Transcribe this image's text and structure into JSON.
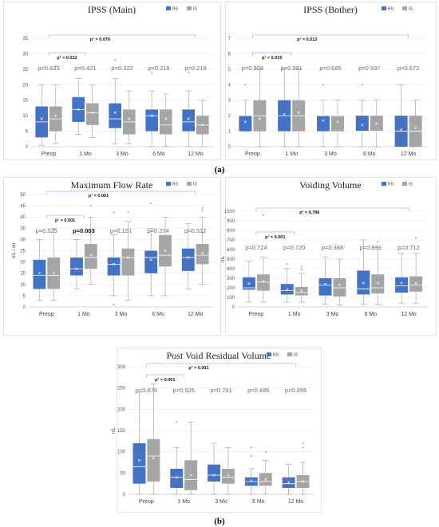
{
  "figure_labels": {
    "top": "(a)",
    "bottom": "(b)"
  },
  "chart_data": [
    {
      "type": "box",
      "title": "IPSS (Main)",
      "ylabel": "",
      "ylim": [
        0,
        35
      ],
      "yticks": [
        0,
        5,
        10,
        15,
        20,
        25,
        30,
        35
      ],
      "categories": [
        "Preop",
        "1 Mo",
        "3 Mo",
        "6 Mo",
        "12 Mo"
      ],
      "legend": {
        "position": "top-right",
        "entries": [
          "RS",
          "IS"
        ]
      },
      "colors": {
        "RS": "#4472c4",
        "IS": "#a5a5a5"
      },
      "p_values": [
        "p=0.633",
        "p=0.421",
        "p=0.322",
        "p=0.216",
        "p=0.218"
      ],
      "p_values_bold": [
        false,
        false,
        false,
        false,
        false
      ],
      "significance": [
        {
          "from": 0,
          "to": 1,
          "label": "p¹ = 0.012"
        },
        {
          "from": 0,
          "to": 4,
          "label": "p¹ = 0.076"
        }
      ],
      "series": [
        {
          "name": "RS",
          "boxes": [
            {
              "min": 0.5,
              "q1": 3,
              "median": 8,
              "q3": 13,
              "max": 20,
              "mean": 9,
              "outliers": []
            },
            {
              "min": 4,
              "q1": 8,
              "median": 12,
              "q3": 16,
              "max": 22,
              "mean": 12,
              "outliers": []
            },
            {
              "min": 1,
              "q1": 6,
              "median": 9,
              "q3": 14,
              "max": 22,
              "mean": 11,
              "outliers": [
                28
              ]
            },
            {
              "min": 0,
              "q1": 5,
              "median": 10,
              "q3": 12,
              "max": 18,
              "mean": 10,
              "outliers": [
                24
              ]
            },
            {
              "min": 0,
              "q1": 5,
              "median": 8,
              "q3": 12,
              "max": 18,
              "mean": 9,
              "outliers": [
                24
              ]
            }
          ]
        },
        {
          "name": "IS",
          "boxes": [
            {
              "min": 1,
              "q1": 5,
              "median": 9,
              "q3": 13,
              "max": 20,
              "mean": 10,
              "outliers": [
                26
              ]
            },
            {
              "min": 3,
              "q1": 7,
              "median": 11,
              "q3": 14,
              "max": 20,
              "mean": 11,
              "outliers": []
            },
            {
              "min": 1,
              "q1": 4,
              "median": 8,
              "q3": 12,
              "max": 18,
              "mean": 9,
              "outliers": []
            },
            {
              "min": 0,
              "q1": 4,
              "median": 7,
              "q3": 12,
              "max": 17,
              "mean": 9,
              "outliers": []
            },
            {
              "min": 0,
              "q1": 4,
              "median": 7,
              "q3": 10,
              "max": 15,
              "mean": 7,
              "outliers": []
            }
          ]
        }
      ]
    },
    {
      "type": "box",
      "title": "IPSS (Bother)",
      "ylabel": "",
      "ylim": [
        0,
        7
      ],
      "yticks": [
        0,
        1,
        2,
        3,
        4,
        5,
        6,
        7
      ],
      "categories": [
        "Preop",
        "1 Mo",
        "3 Mo",
        "6 Mo",
        "12 Mo"
      ],
      "legend": {
        "position": "top-right",
        "entries": [
          "RS",
          "IS"
        ]
      },
      "colors": {
        "RS": "#4472c4",
        "IS": "#a5a5a5"
      },
      "p_values": [
        "p=0.908",
        "p=0.981",
        "p=0.685",
        "p=0.937",
        "p=0.672"
      ],
      "p_values_bold": [
        false,
        false,
        false,
        false,
        false
      ],
      "significance": [
        {
          "from": 0,
          "to": 1,
          "label": "p¹ = 0.015"
        },
        {
          "from": 0,
          "to": 4,
          "label": "p¹ = 0.013"
        }
      ],
      "series": [
        {
          "name": "RS",
          "boxes": [
            {
              "min": 1,
              "q1": 1,
              "median": 2,
              "q3": 2,
              "max": 3,
              "mean": 1.6,
              "outliers": [
                4
              ]
            },
            {
              "min": 0,
              "q1": 1,
              "median": 2,
              "q3": 3,
              "max": 5,
              "mean": 2.1,
              "outliers": []
            },
            {
              "min": 0,
              "q1": 1,
              "median": 2,
              "q3": 2,
              "max": 3,
              "mean": 1.7,
              "outliers": [
                4
              ]
            },
            {
              "min": 0,
              "q1": 1,
              "median": 1,
              "q3": 2,
              "max": 3,
              "mean": 1.4,
              "outliers": [
                4
              ]
            },
            {
              "min": 0,
              "q1": 0,
              "median": 1,
              "q3": 2,
              "max": 4,
              "mean": 1.1,
              "outliers": []
            }
          ]
        },
        {
          "name": "IS",
          "boxes": [
            {
              "min": 0,
              "q1": 1,
              "median": 2,
              "q3": 3,
              "max": 5,
              "mean": 1.8,
              "outliers": []
            },
            {
              "min": 0,
              "q1": 1,
              "median": 2,
              "q3": 3,
              "max": 5,
              "mean": 2.2,
              "outliers": []
            },
            {
              "min": 0,
              "q1": 1,
              "median": 2,
              "q3": 2,
              "max": 3,
              "mean": 1.6,
              "outliers": []
            },
            {
              "min": 0,
              "q1": 1,
              "median": 1,
              "q3": 2,
              "max": 3,
              "mean": 1.5,
              "outliers": []
            },
            {
              "min": 0,
              "q1": 0,
              "median": 1,
              "q3": 2,
              "max": 3,
              "mean": 1.2,
              "outliers": []
            }
          ]
        }
      ]
    },
    {
      "type": "box",
      "title": "Maximum Flow Rate",
      "ylabel": "mL / sn",
      "ylim": [
        0,
        50
      ],
      "yticks": [
        0,
        5,
        10,
        15,
        20,
        25,
        30,
        35,
        40,
        45,
        50
      ],
      "categories": [
        "Preop",
        "1 Mo",
        "3 Mo",
        "6 Mo",
        "12 Mo"
      ],
      "legend": {
        "position": "top-right",
        "entries": [
          "RS",
          "IS"
        ]
      },
      "colors": {
        "RS": "#4472c4",
        "IS": "#a5a5a5"
      },
      "p_values": [
        "p=0.525",
        "p=0.003",
        "p=0.151",
        "p=0.274",
        "p=0.312"
      ],
      "p_values_bold": [
        false,
        true,
        false,
        false,
        false
      ],
      "significance": [
        {
          "from": 0,
          "to": 1,
          "label": "p¹ = 0.001"
        },
        {
          "from": 0,
          "to": 4,
          "label": "p¹ = 0.001"
        }
      ],
      "series": [
        {
          "name": "RS",
          "boxes": [
            {
              "min": 3,
              "q1": 8,
              "median": 14,
              "q3": 21,
              "max": 30,
              "mean": 15,
              "outliers": []
            },
            {
              "min": 8,
              "q1": 14,
              "median": 17,
              "q3": 22,
              "max": 30,
              "mean": 17,
              "outliers": []
            },
            {
              "min": 5,
              "q1": 14,
              "median": 19,
              "q3": 22,
              "max": 32,
              "mean": 19,
              "outliers": [
                1,
                42
              ]
            },
            {
              "min": 5,
              "q1": 15,
              "median": 22,
              "q3": 25,
              "max": 35,
              "mean": 21,
              "outliers": [
                46
              ]
            },
            {
              "min": 8,
              "q1": 16,
              "median": 22,
              "q3": 26,
              "max": 37,
              "mean": 22,
              "outliers": []
            }
          ]
        },
        {
          "name": "IS",
          "boxes": [
            {
              "min": 3,
              "q1": 8,
              "median": 14,
              "q3": 22,
              "max": 35,
              "mean": 15,
              "outliers": []
            },
            {
              "min": 10,
              "q1": 17,
              "median": 22,
              "q3": 28,
              "max": 40,
              "mean": 23,
              "outliers": [
                45
              ]
            },
            {
              "min": 3,
              "q1": 14,
              "median": 22,
              "q3": 26,
              "max": 38,
              "mean": 22,
              "outliers": [
                42
              ]
            },
            {
              "min": 5,
              "q1": 18,
              "median": 23,
              "q3": 32,
              "max": 40,
              "mean": 25,
              "outliers": []
            },
            {
              "min": 10,
              "q1": 19,
              "median": 23,
              "q3": 28,
              "max": 40,
              "mean": 24,
              "outliers": [
                43,
                44
              ]
            }
          ]
        }
      ]
    },
    {
      "type": "box",
      "title": "Voiding Volume",
      "ylabel": "mL",
      "ylim": [
        0,
        1000
      ],
      "yticks": [
        0,
        100,
        200,
        300,
        400,
        500,
        600,
        700,
        800,
        900,
        1000
      ],
      "categories": [
        "Preop",
        "1 Mo",
        "3 Mo",
        "6 Mo",
        "12 Mo"
      ],
      "legend": {
        "position": "top-right",
        "entries": [
          "RS",
          "IS"
        ]
      },
      "colors": {
        "RS": "#4472c4",
        "IS": "#a5a5a5"
      },
      "p_values": [
        "p=0.724",
        "p=0.720",
        "p=0.388",
        "p=0.831",
        "p=0.712"
      ],
      "p_values_bold": [
        false,
        false,
        false,
        false,
        false
      ],
      "significance": [
        {
          "from": 0,
          "to": 1,
          "label": "p¹ = 0.001"
        },
        {
          "from": 0,
          "to": 4,
          "label": "p¹ = 0.786"
        }
      ],
      "series": [
        {
          "name": "RS",
          "boxes": [
            {
              "min": 50,
              "q1": 180,
              "median": 200,
              "q3": 310,
              "max": 480,
              "mean": 245,
              "outliers": []
            },
            {
              "min": 50,
              "q1": 130,
              "median": 170,
              "q3": 240,
              "max": 400,
              "mean": 180,
              "outliers": [
                450
              ]
            },
            {
              "min": 30,
              "q1": 120,
              "median": 230,
              "q3": 300,
              "max": 520,
              "mean": 240,
              "outliers": []
            },
            {
              "min": 30,
              "q1": 130,
              "median": 190,
              "q3": 380,
              "max": 700,
              "mean": 250,
              "outliers": []
            },
            {
              "min": 40,
              "q1": 150,
              "median": 220,
              "q3": 310,
              "max": 560,
              "mean": 250,
              "outliers": []
            }
          ]
        },
        {
          "name": "IS",
          "boxes": [
            {
              "min": 50,
              "q1": 170,
              "median": 260,
              "q3": 340,
              "max": 520,
              "mean": 270,
              "outliers": [
                960
              ]
            },
            {
              "min": 50,
              "q1": 120,
              "median": 150,
              "q3": 210,
              "max": 350,
              "mean": 170,
              "outliers": [
                390,
                420
              ]
            },
            {
              "min": 20,
              "q1": 110,
              "median": 200,
              "q3": 300,
              "max": 500,
              "mean": 230,
              "outliers": []
            },
            {
              "min": 30,
              "q1": 140,
              "median": 200,
              "q3": 340,
              "max": 620,
              "mean": 250,
              "outliers": [
                680
              ]
            },
            {
              "min": 40,
              "q1": 160,
              "median": 230,
              "q3": 320,
              "max": 560,
              "mean": 250,
              "outliers": [
                720
              ]
            }
          ]
        }
      ]
    },
    {
      "type": "box",
      "title": "Post Void Residual Volume",
      "ylabel": "mL",
      "ylim": [
        0,
        300
      ],
      "yticks": [
        0,
        50,
        100,
        150,
        200,
        250,
        300
      ],
      "categories": [
        "Preop",
        "1 Mo",
        "3 Mo",
        "6 Mo",
        "12 Mo"
      ],
      "legend": {
        "position": "top-right",
        "entries": [
          "RS",
          "IS"
        ]
      },
      "colors": {
        "RS": "#4472c4",
        "IS": "#a5a5a5"
      },
      "p_values": [
        "p=0.878",
        "p=0.925",
        "p=0.791",
        "p=0.485",
        "p=0.895"
      ],
      "p_values_bold": [
        false,
        false,
        false,
        false,
        false
      ],
      "significance": [
        {
          "from": 0,
          "to": 1,
          "label": "p¹ = 0.001"
        },
        {
          "from": 0,
          "to": 4,
          "label": "p¹ = 0.001"
        }
      ],
      "series": [
        {
          "name": "RS",
          "boxes": [
            {
              "min": 0,
              "q1": 25,
              "median": 65,
              "q3": 120,
              "max": 240,
              "mean": 80,
              "outliers": []
            },
            {
              "min": 0,
              "q1": 15,
              "median": 40,
              "q3": 60,
              "max": 110,
              "mean": 40,
              "outliers": [
                170
              ]
            },
            {
              "min": 0,
              "q1": 30,
              "median": 45,
              "q3": 70,
              "max": 120,
              "mean": 45,
              "outliers": []
            },
            {
              "min": 0,
              "q1": 20,
              "median": 30,
              "q3": 40,
              "max": 60,
              "mean": 32,
              "outliers": [
                90,
                110
              ]
            },
            {
              "min": 0,
              "q1": 15,
              "median": 25,
              "q3": 40,
              "max": 70,
              "mean": 28,
              "outliers": []
            }
          ]
        },
        {
          "name": "IS",
          "boxes": [
            {
              "min": 0,
              "q1": 30,
              "median": 90,
              "q3": 130,
              "max": 260,
              "mean": 85,
              "outliers": []
            },
            {
              "min": 0,
              "q1": 10,
              "median": 35,
              "q3": 80,
              "max": 170,
              "mean": 45,
              "outliers": []
            },
            {
              "min": 0,
              "q1": 25,
              "median": 40,
              "q3": 60,
              "max": 110,
              "mean": 45,
              "outliers": []
            },
            {
              "min": 0,
              "q1": 20,
              "median": 30,
              "q3": 50,
              "max": 80,
              "mean": 35,
              "outliers": [
                100
              ]
            },
            {
              "min": 0,
              "q1": 15,
              "median": 30,
              "q3": 45,
              "max": 75,
              "mean": 30,
              "outliers": [
                110,
                120
              ]
            }
          ]
        }
      ]
    }
  ]
}
